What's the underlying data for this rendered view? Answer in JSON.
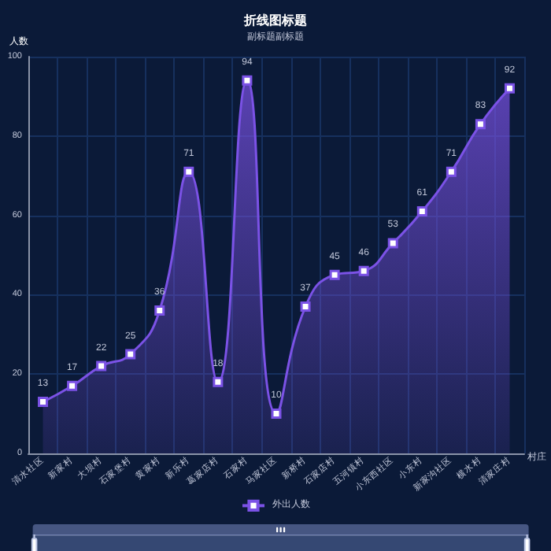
{
  "chart_data": {
    "type": "area",
    "title": "折线图标题",
    "subtitle": "副标题副标题",
    "xlabel": "村庄",
    "ylabel": "人数",
    "categories": [
      "清水社区",
      "新家村",
      "大坝村",
      "石家堡村",
      "黄家村",
      "新乐村",
      "葛家店村",
      "石家村",
      "马家社区",
      "新桥村",
      "石家店村",
      "五河镇村",
      "小东西社区",
      "小东村",
      "新家沟社区",
      "横水村",
      "清家庄村"
    ],
    "series": [
      {
        "name": "外出人数",
        "color": "#7b52e6",
        "values": [
          13,
          17,
          22,
          25,
          36,
          71,
          18,
          94,
          10,
          37,
          45,
          46,
          53,
          61,
          71,
          83,
          92
        ]
      }
    ],
    "ylim": [
      0,
      100
    ],
    "yticks": [
      0,
      20,
      40,
      60,
      80,
      100
    ],
    "grid": true,
    "legend": "bottom",
    "marker": "square",
    "data_labels": true
  }
}
